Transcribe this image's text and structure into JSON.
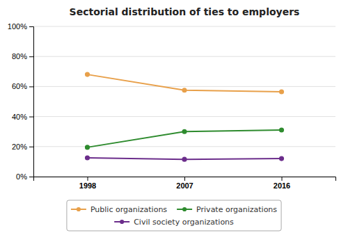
{
  "chart_data": {
    "type": "line",
    "title": "Sectorial distribution of ties to employers",
    "x": [
      1998,
      2007,
      2016
    ],
    "series": [
      {
        "name": "Public organizations",
        "color": "#E8A04A",
        "marker": "circle",
        "values": [
          68,
          57.5,
          56.5
        ]
      },
      {
        "name": "Private organizations",
        "color": "#2E8B2E",
        "marker": "circle",
        "values": [
          19.5,
          30,
          31
        ]
      },
      {
        "name": "Civil society organizations",
        "color": "#6B2D8B",
        "marker": "circle",
        "values": [
          12.5,
          11.5,
          12
        ]
      }
    ],
    "xlim": [
      1993,
      2021
    ],
    "xticks": [
      1998,
      2007,
      2016
    ],
    "ylim": [
      0,
      100
    ],
    "yticks": [
      {
        "value": 0,
        "label": "0%"
      },
      {
        "value": 20,
        "label": "20%"
      },
      {
        "value": 40,
        "label": "40%"
      },
      {
        "value": 60,
        "label": "60%"
      },
      {
        "value": 80,
        "label": "80%"
      },
      {
        "value": 100,
        "label": "100%"
      }
    ],
    "grid": "y",
    "legend": "bottom"
  }
}
